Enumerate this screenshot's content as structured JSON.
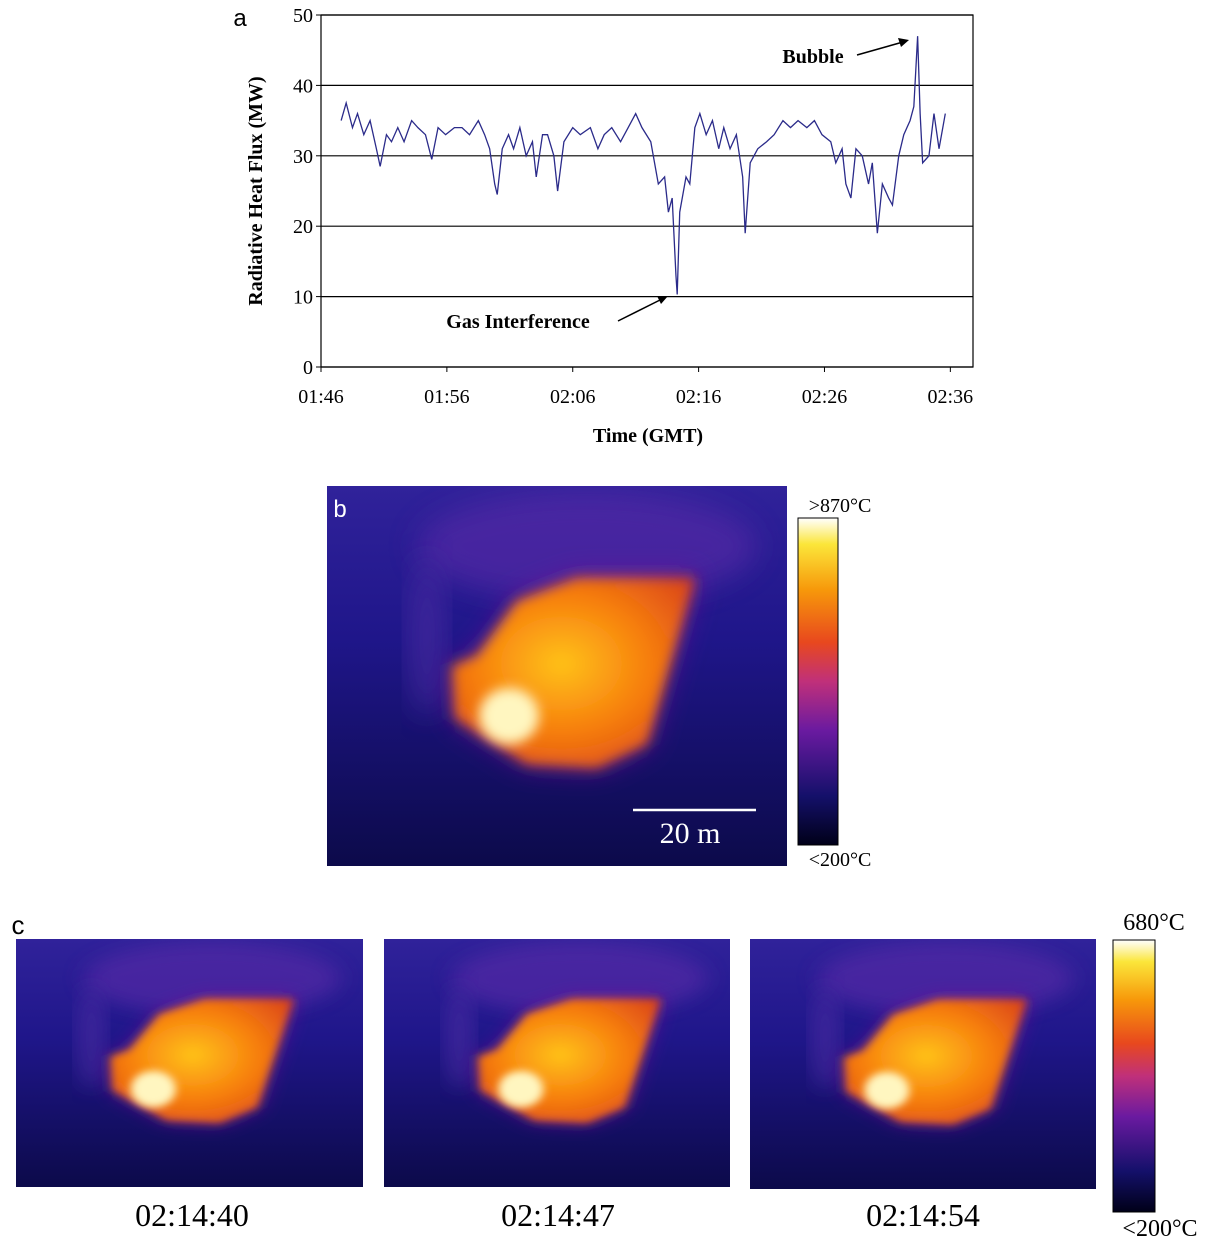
{
  "chart_data": {
    "type": "line",
    "panel_label": "a",
    "x_label": "Time (GMT)",
    "y_label": "Radiative Heat Flux (MW)",
    "x": [
      107.6,
      108.0,
      108.5,
      108.9,
      109.4,
      109.9,
      110.4,
      110.7,
      111.2,
      111.6,
      112.1,
      112.6,
      113.2,
      113.7,
      114.3,
      114.8,
      115.3,
      115.9,
      116.6,
      117.2,
      117.8,
      118.5,
      119.0,
      119.4,
      119.8,
      120.0,
      120.4,
      120.9,
      121.3,
      121.8,
      122.3,
      122.8,
      123.1,
      123.6,
      124.0,
      124.5,
      124.8,
      125.3,
      126.0,
      126.6,
      127.4,
      128.0,
      128.5,
      129.1,
      129.8,
      130.4,
      131.0,
      131.5,
      132.2,
      132.8,
      133.3,
      133.6,
      133.9,
      134.2,
      134.3,
      134.5,
      135.0,
      135.3,
      135.7,
      136.1,
      136.6,
      137.1,
      137.6,
      138.0,
      138.5,
      139.0,
      139.5,
      139.7,
      140.1,
      140.7,
      141.4,
      142.0,
      142.7,
      143.3,
      143.9,
      144.6,
      145.2,
      145.8,
      146.5,
      146.9,
      147.4,
      147.7,
      148.1,
      148.5,
      149.0,
      149.5,
      149.8,
      150.2,
      150.6,
      151.1,
      151.4,
      151.9,
      152.3,
      152.8,
      153.1,
      153.4,
      153.6,
      153.8,
      154.3,
      154.7,
      155.1,
      155.6
    ],
    "series": [
      {
        "color": "#2b2b8a",
        "values": [
          35,
          37.5,
          34,
          36,
          33,
          35,
          31,
          28.5,
          33,
          32,
          34,
          32,
          35,
          34,
          33,
          29.5,
          34,
          33,
          34,
          34,
          33,
          35,
          33,
          31,
          26,
          24.5,
          31,
          33,
          31,
          34,
          30,
          32,
          27,
          33,
          33,
          30,
          25,
          32,
          34,
          33,
          34,
          31,
          33,
          34,
          32,
          34,
          36,
          34,
          32,
          26,
          27,
          22,
          24,
          13,
          10.3,
          22,
          27,
          26,
          34,
          36,
          33,
          35,
          31,
          34,
          31,
          33,
          27,
          19,
          29,
          31,
          32,
          33,
          35,
          34,
          35,
          34,
          35,
          33,
          32,
          29,
          31,
          26,
          24,
          31,
          30,
          26,
          29,
          19,
          26,
          24,
          23,
          30,
          33,
          35,
          37,
          47,
          36,
          29,
          30,
          36,
          31,
          36
        ]
      }
    ],
    "xlim": [
      106,
      157.8
    ],
    "ylim": [
      0,
      50
    ],
    "xticks": [
      {
        "value": 106,
        "label": "01:46"
      },
      {
        "value": 116,
        "label": "01:56"
      },
      {
        "value": 126,
        "label": "02:06"
      },
      {
        "value": 136,
        "label": "02:16"
      },
      {
        "value": 146,
        "label": "02:26"
      },
      {
        "value": 156,
        "label": "02:36"
      }
    ],
    "yticks": [
      0,
      10,
      20,
      30,
      40,
      50
    ],
    "grid": true,
    "annotations": [
      "Bubble",
      "Gas Interference"
    ]
  },
  "panel_b": {
    "label": "b",
    "scale_bar": "20 m",
    "colorbar_max": ">870°C",
    "colorbar_min": "<200°C"
  },
  "panel_c": {
    "label": "c",
    "times": [
      "02:14:40",
      "02:14:47",
      "02:14:54"
    ],
    "colorbar_max": "680°C",
    "colorbar_min": "<200°C"
  }
}
